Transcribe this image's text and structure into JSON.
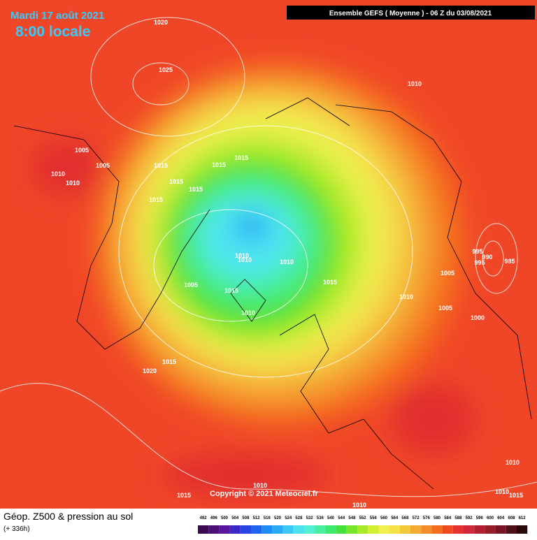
{
  "header": {
    "date": "Mardi 17 août 2021",
    "time": "8:00 locale",
    "run": "Ensemble GEFS  ( Moyenne )  -  06 Z du 03/08/2021"
  },
  "footer": {
    "title": "Géop. Z500 & pression au sol",
    "lead": "(+ 336h)",
    "copyright": "Copyright © 2021 Meteociel.fr"
  },
  "legend": {
    "levels": [
      492,
      496,
      500,
      504,
      508,
      512,
      516,
      520,
      524,
      528,
      532,
      536,
      540,
      544,
      548,
      552,
      556,
      560,
      564,
      568,
      572,
      576,
      580,
      584,
      588,
      592,
      596,
      600,
      604,
      608,
      612
    ],
    "colors": [
      "#3c0a50",
      "#4b0f78",
      "#5a14a0",
      "#3c28c8",
      "#2846e6",
      "#1e64f0",
      "#1e8cf5",
      "#28aaf5",
      "#3cc8f5",
      "#50e1f0",
      "#50f0d2",
      "#46f0a0",
      "#3ceb6e",
      "#46e13c",
      "#78e628",
      "#aaeb28",
      "#d2f032",
      "#f0f050",
      "#f5e146",
      "#f5c83c",
      "#f5aa32",
      "#f58c28",
      "#f56e1e",
      "#f04b1e",
      "#e63232",
      "#d2283c",
      "#b41e32",
      "#961e28",
      "#781423",
      "#50101a",
      "#280808"
    ]
  },
  "isobar_labels": [
    1020,
    1025,
    1010,
    1005,
    1005,
    1010,
    1010,
    1015,
    1015,
    1015,
    1015,
    1015,
    1015,
    1010,
    1010,
    1010,
    995,
    990,
    995,
    985,
    1005,
    1005,
    1015,
    1015,
    1010,
    1005,
    1010,
    1000,
    1015,
    1020,
    1010,
    1015,
    1010,
    1010,
    1010,
    1015
  ]
}
